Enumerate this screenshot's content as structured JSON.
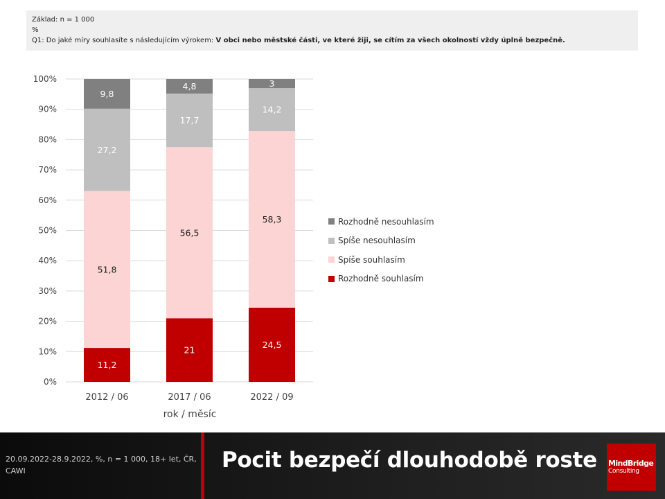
{
  "info": {
    "base": "Základ: n = 1 000",
    "unit": "%",
    "question_prefix": "Q1: Do jaké míry souhlasíte s následujícím výrokem:",
    "question_statement": "V obci nebo městské části, ve které žiji, se cítím za všech okolností vždy úplně bezpečně."
  },
  "chart_data": {
    "type": "bar",
    "stacked": true,
    "percent_stacked": true,
    "categories": [
      "2012 / 06",
      "2017 / 06",
      "2022 / 09"
    ],
    "series": [
      {
        "name": "Rozhodně souhlasím",
        "values": [
          11.2,
          21,
          24.5
        ],
        "labels": [
          "11,2",
          "21",
          "24,5"
        ],
        "color": "#c00000",
        "label_color": "#ffffff"
      },
      {
        "name": "Spíše souhlasím",
        "values": [
          51.8,
          56.5,
          58.3
        ],
        "labels": [
          "51,8",
          "56,5",
          "58,3"
        ],
        "color": "#fdd4d4",
        "label_color": "#222222"
      },
      {
        "name": "Spíše nesouhlasím",
        "values": [
          27.2,
          17.7,
          14.2
        ],
        "labels": [
          "27,2",
          "17,7",
          "14,2"
        ],
        "color": "#bfbfbf",
        "label_color": "#ffffff"
      },
      {
        "name": "Rozhodně nesouhlasím",
        "values": [
          9.8,
          4.8,
          3
        ],
        "labels": [
          "9,8",
          "4,8",
          "3"
        ],
        "color": "#808080",
        "label_color": "#ffffff"
      }
    ],
    "yticks": [
      "0%",
      "10%",
      "20%",
      "30%",
      "40%",
      "50%",
      "60%",
      "70%",
      "80%",
      "90%",
      "100%"
    ],
    "ylim": [
      0,
      100
    ],
    "xlabel": "rok / měsíc",
    "ylabel": "",
    "grid": true,
    "legend_position": "right",
    "legend_order": [
      "Rozhodně nesouhlasím",
      "Spíše nesouhlasím",
      "Spíše souhlasím",
      "Rozhodně souhlasím"
    ]
  },
  "footer": {
    "note": "20.09.2022-28.9.2022,  %, n = 1 000, 18+ let, ČR, CAWI",
    "title": "Pocit bezpečí dlouhodobě roste",
    "logo_line1": "MindBridge",
    "logo_line2": "Consulting"
  }
}
